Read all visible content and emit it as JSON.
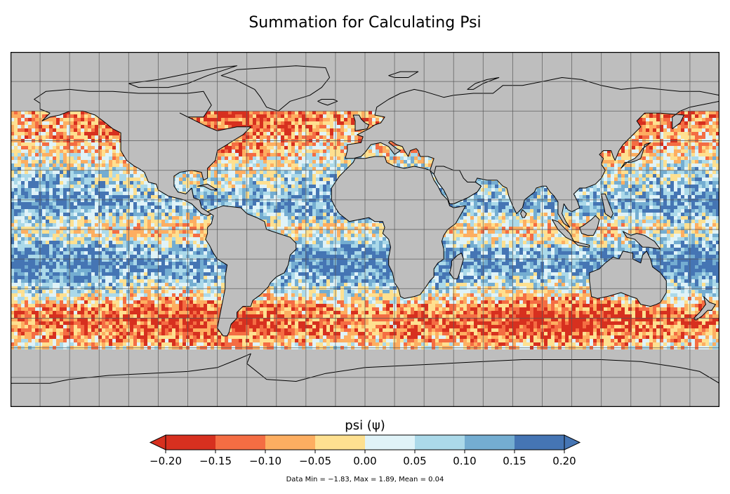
{
  "title": "Summation for Calculating Psi",
  "colors": {
    "land": "#bebebe",
    "grid": "#555555",
    "coast": "#000000"
  },
  "map": {
    "projection": "equirectangular",
    "lon_range": [
      -180,
      180
    ],
    "lat_range": [
      -90,
      90
    ],
    "grid_spacing_deg": 15,
    "grid": true,
    "data_lat_range": [
      -60,
      60
    ]
  },
  "colorbar": {
    "label": "psi (ψ)",
    "ticks": [
      "−0.20",
      "−0.15",
      "−0.10",
      "−0.05",
      "0.00",
      "0.05",
      "0.10",
      "0.15",
      "0.20"
    ],
    "bins": [
      {
        "from": -0.2,
        "to": -0.15,
        "color": "#d7301f"
      },
      {
        "from": -0.15,
        "to": -0.1,
        "color": "#f46d43"
      },
      {
        "from": -0.1,
        "to": -0.05,
        "color": "#fdae61"
      },
      {
        "from": -0.05,
        "to": 0.0,
        "color": "#fee090"
      },
      {
        "from": 0.0,
        "to": 0.05,
        "color": "#e0f3f8"
      },
      {
        "from": 0.05,
        "to": 0.1,
        "color": "#abd9e9"
      },
      {
        "from": 0.1,
        "to": 0.15,
        "color": "#74add1"
      },
      {
        "from": 0.15,
        "to": 0.2,
        "color": "#4575b4"
      }
    ],
    "extend_low_color": "#d7301f",
    "extend_high_color": "#4575b4"
  },
  "stats_text": "Data Min = −1.83, Max = 1.89, Mean = 0.04",
  "chart_data": {
    "type": "heatmap",
    "title": "Summation for Calculating Psi",
    "colorbar_label": "psi (ψ)",
    "vmin": -0.2,
    "vmax": 0.2,
    "data_min": -1.83,
    "data_max": 1.89,
    "data_mean": 0.04,
    "zonal_pattern": [
      {
        "lat": 60,
        "value": -0.12
      },
      {
        "lat": 50,
        "value": -0.1
      },
      {
        "lat": 40,
        "value": -0.06
      },
      {
        "lat": 30,
        "value": 0.03
      },
      {
        "lat": 20,
        "value": 0.09
      },
      {
        "lat": 12,
        "value": 0.14
      },
      {
        "lat": 5,
        "value": 0.04
      },
      {
        "lat": 0,
        "value": -0.02
      },
      {
        "lat": -5,
        "value": 0.02
      },
      {
        "lat": -10,
        "value": 0.12
      },
      {
        "lat": -18,
        "value": 0.17
      },
      {
        "lat": -25,
        "value": 0.1
      },
      {
        "lat": -32,
        "value": 0.02
      },
      {
        "lat": -38,
        "value": -0.08
      },
      {
        "lat": -45,
        "value": -0.14
      },
      {
        "lat": -52,
        "value": -0.12
      },
      {
        "lat": -58,
        "value": -0.05
      },
      {
        "lat": -62,
        "value": 0.0
      }
    ]
  }
}
